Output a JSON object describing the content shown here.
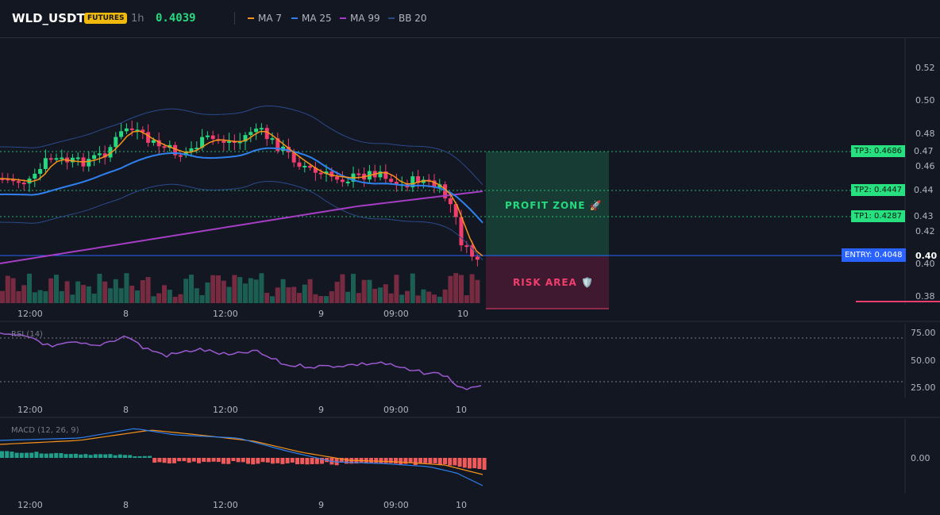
{
  "header": {
    "symbol": "WLD_USDT",
    "badge": "FUTURES",
    "timeframe": "1h",
    "price": "0.4039",
    "legend": [
      {
        "label": "MA 7",
        "color": "#f7931a"
      },
      {
        "label": "MA 25",
        "color": "#2f80ed"
      },
      {
        "label": "MA 99",
        "color": "#a63ec5"
      },
      {
        "label": "BB 20",
        "color": "#2a4a8a"
      }
    ]
  },
  "price_axis": {
    "ticks": [
      "0.52",
      "0.50",
      "0.48",
      "0.46",
      "0.44",
      "0.42",
      "0.40",
      "0.38"
    ],
    "right_labels": [
      "0.47",
      "0.44",
      "0.43",
      "0.40"
    ]
  },
  "levels": {
    "tp3": "TP3: 0.4686",
    "tp2": "TP2: 0.4447",
    "tp1": "TP1: 0.4287",
    "entry": "ENTRY: 0.4048"
  },
  "zones": {
    "profit": "PROFIT ZONE 🚀",
    "risk": "RISK AREA 🛡️"
  },
  "time_axis": [
    "12:00",
    "8",
    "12:00",
    "9",
    "09:00",
    "10"
  ],
  "rsi": {
    "title": "RSI (14)",
    "ticks": [
      "75.00",
      "50.00",
      "25.00"
    ]
  },
  "macd": {
    "title": "MACD (12, 26, 9)",
    "tick": "0.00"
  },
  "colors": {
    "up": "#26d97f",
    "down": "#f23e6e",
    "ma7": "#f7931a",
    "ma25": "#2f80ed",
    "ma99": "#a63ec5",
    "bb": "#2a4a8a",
    "tp": "#27e07f",
    "entry": "#2962ff",
    "rsi": "#9b59d0",
    "macd": "#2f80ed",
    "signal": "#f7931a"
  }
}
